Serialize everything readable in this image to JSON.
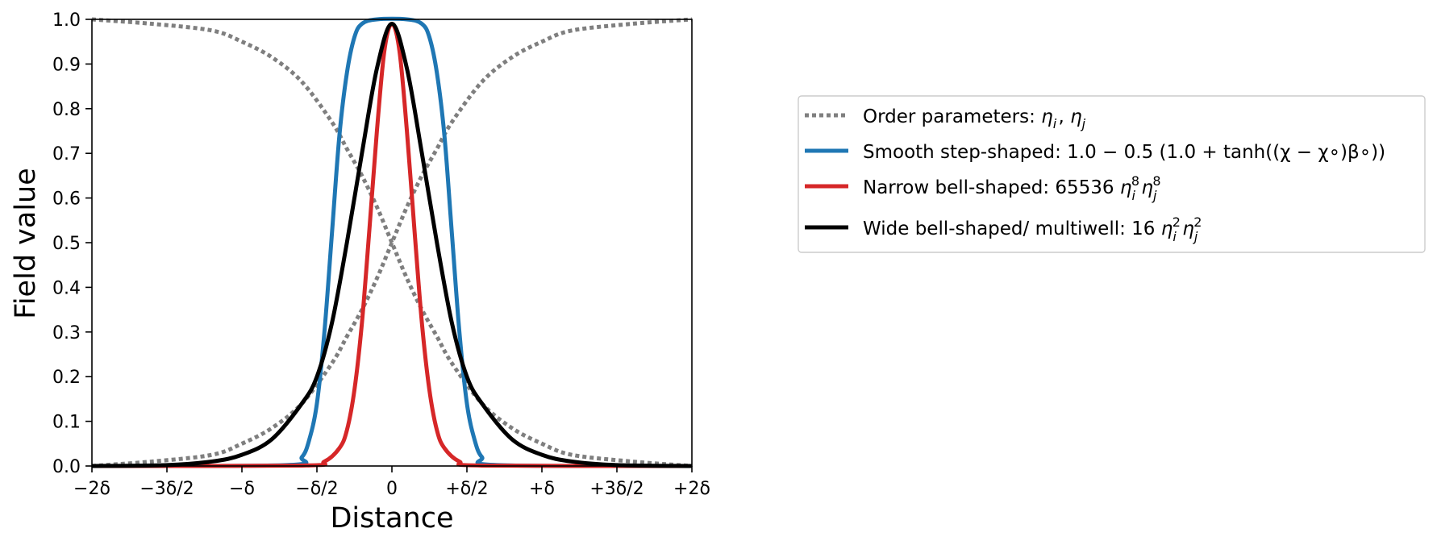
{
  "chart_data": {
    "type": "line",
    "xlabel": "Distance",
    "ylabel": "Field value",
    "xlim_delta": [
      -2,
      2
    ],
    "ylim": [
      0,
      1
    ],
    "grid": false,
    "legend_position": "right, outside plot",
    "x_ticks": [
      {
        "value_delta": -2,
        "label": "−2δ"
      },
      {
        "value_delta": -1.5,
        "label": "−3δ/2"
      },
      {
        "value_delta": -1,
        "label": "−δ"
      },
      {
        "value_delta": -0.5,
        "label": "−δ/2"
      },
      {
        "value_delta": 0,
        "label": "0"
      },
      {
        "value_delta": 0.5,
        "label": "+δ/2"
      },
      {
        "value_delta": 1,
        "label": "+δ"
      },
      {
        "value_delta": 1.5,
        "label": "+3δ/2"
      },
      {
        "value_delta": 2,
        "label": "+2δ"
      }
    ],
    "y_ticks": [
      {
        "value": 0.0,
        "label": "0.0"
      },
      {
        "value": 0.1,
        "label": "0.1"
      },
      {
        "value": 0.2,
        "label": "0.2"
      },
      {
        "value": 0.3,
        "label": "0.3"
      },
      {
        "value": 0.4,
        "label": "0.4"
      },
      {
        "value": 0.5,
        "label": "0.5"
      },
      {
        "value": 0.6,
        "label": "0.6"
      },
      {
        "value": 0.7,
        "label": "0.7"
      },
      {
        "value": 0.8,
        "label": "0.8"
      },
      {
        "value": 0.9,
        "label": "0.9"
      },
      {
        "value": 1.0,
        "label": "1.0"
      }
    ],
    "series": [
      {
        "id": "eta_i",
        "legend_group": "order",
        "color": "#7f7f7f",
        "style": "dotted",
        "x": [
          -2.0,
          -1.6,
          -1.2,
          -1.0,
          -0.8,
          -0.6,
          -0.4,
          -0.3,
          -0.2,
          -0.1,
          0.0,
          0.1,
          0.2,
          0.3,
          0.4,
          0.6,
          0.8,
          1.0,
          1.2,
          1.6,
          2.0
        ],
        "y": [
          1.0,
          0.99,
          0.975,
          0.95,
          0.915,
          0.86,
          0.77,
          0.71,
          0.65,
          0.58,
          0.5,
          0.42,
          0.35,
          0.29,
          0.23,
          0.14,
          0.085,
          0.05,
          0.025,
          0.01,
          0.0
        ]
      },
      {
        "id": "eta_j",
        "legend_group": "order",
        "color": "#7f7f7f",
        "style": "dotted",
        "x": [
          -2.0,
          -1.6,
          -1.2,
          -1.0,
          -0.8,
          -0.6,
          -0.4,
          -0.3,
          -0.2,
          -0.1,
          0.0,
          0.1,
          0.2,
          0.3,
          0.4,
          0.6,
          0.8,
          1.0,
          1.2,
          1.6,
          2.0
        ],
        "y": [
          0.0,
          0.01,
          0.025,
          0.05,
          0.085,
          0.14,
          0.23,
          0.29,
          0.35,
          0.42,
          0.5,
          0.58,
          0.65,
          0.71,
          0.77,
          0.86,
          0.915,
          0.95,
          0.975,
          0.99,
          1.0
        ]
      },
      {
        "id": "step",
        "color": "#1f77b4",
        "style": "solid",
        "x": [
          -2.0,
          -0.7,
          -0.6,
          -0.55,
          -0.5,
          -0.45,
          -0.4,
          -0.35,
          -0.3,
          -0.25,
          -0.2,
          -0.1,
          0.1,
          0.2,
          0.25,
          0.3,
          0.35,
          0.4,
          0.45,
          0.5,
          0.55,
          0.6,
          0.7,
          2.0
        ],
        "y": [
          0.0,
          0.002,
          0.02,
          0.06,
          0.14,
          0.3,
          0.52,
          0.74,
          0.88,
          0.96,
          0.99,
          1.0,
          1.0,
          0.99,
          0.96,
          0.88,
          0.74,
          0.52,
          0.3,
          0.14,
          0.06,
          0.02,
          0.002,
          0.0
        ]
      },
      {
        "id": "narrow",
        "color": "#d62728",
        "style": "solid",
        "x": [
          -2.0,
          -0.6,
          -0.45,
          -0.35,
          -0.3,
          -0.25,
          -0.2,
          -0.15,
          -0.1,
          -0.05,
          0.0,
          0.05,
          0.1,
          0.15,
          0.2,
          0.25,
          0.3,
          0.35,
          0.45,
          0.6,
          2.0
        ],
        "y": [
          0.0,
          0.001,
          0.01,
          0.04,
          0.08,
          0.17,
          0.32,
          0.53,
          0.75,
          0.93,
          0.99,
          0.93,
          0.75,
          0.53,
          0.32,
          0.17,
          0.08,
          0.04,
          0.01,
          0.001,
          0.0
        ]
      },
      {
        "id": "wide",
        "color": "#000000",
        "style": "solid",
        "x": [
          -2.0,
          -1.5,
          -1.2,
          -1.0,
          -0.8,
          -0.6,
          -0.5,
          -0.4,
          -0.3,
          -0.2,
          -0.1,
          0.0,
          0.1,
          0.2,
          0.3,
          0.4,
          0.5,
          0.6,
          0.8,
          1.0,
          1.2,
          1.5,
          2.0
        ],
        "y": [
          0.0,
          0.002,
          0.01,
          0.025,
          0.06,
          0.14,
          0.2,
          0.32,
          0.5,
          0.7,
          0.89,
          0.99,
          0.89,
          0.7,
          0.5,
          0.32,
          0.2,
          0.14,
          0.06,
          0.025,
          0.01,
          0.002,
          0.0
        ]
      }
    ],
    "legend": [
      {
        "series_ref": "order",
        "color": "#7f7f7f",
        "style": "dotted",
        "text": "Order parameters: ",
        "math": [
          [
            "η",
            "i"
          ],
          ", ",
          [
            "η",
            "j"
          ]
        ]
      },
      {
        "series_ref": "step",
        "color": "#1f77b4",
        "style": "solid",
        "text": "Smooth step-shaped: ",
        "math_plain": "1.0 − 0.5 (1.0 + tanh((χ − χ∘)β∘))"
      },
      {
        "series_ref": "narrow",
        "color": "#d62728",
        "style": "solid",
        "text": "Narrow bell-shaped: ",
        "coef": "65536",
        "sup": "8"
      },
      {
        "series_ref": "wide",
        "color": "#000000",
        "style": "solid",
        "text": "Wide bell-shaped/ multiwell: ",
        "coef": "16",
        "sup": "2"
      }
    ]
  }
}
